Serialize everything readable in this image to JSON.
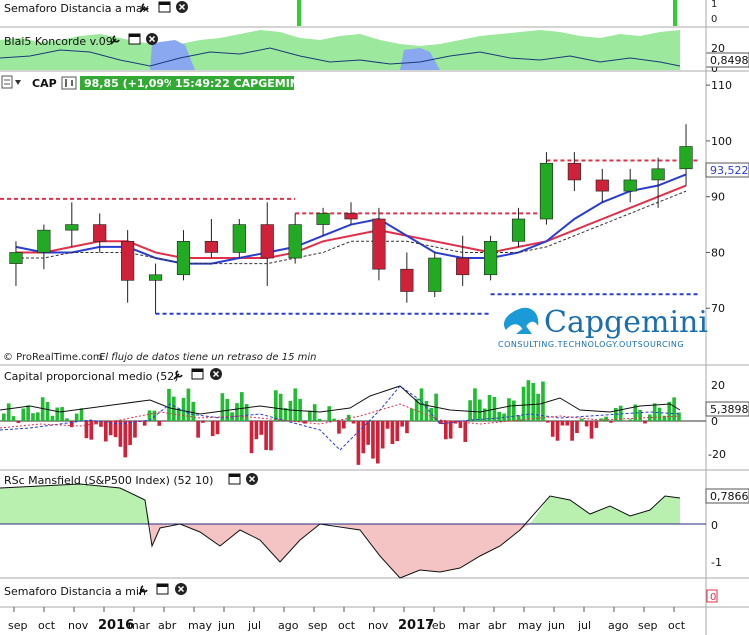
{
  "colors": {
    "bull": "#22aa22",
    "bear": "#d0213a",
    "ma_red": "#e0304a",
    "ma_blue": "#2a3dd0",
    "support_blue": "#2a3dd0",
    "resist_red": "#e0304a",
    "pos_bar": "#22bb33",
    "neg_bar": "#d0213a",
    "cap_badge_bg": "#33aa33",
    "mansfield_pos": "#b9f0b0",
    "mansfield_neg": "#f4c4c4",
    "koncorde_green": "#9ce89c",
    "koncorde_blue": "#8aa8f0"
  },
  "panels": {
    "semaforo_max": {
      "title": "Semaforo Distancia a max",
      "axis_labels": [
        "1",
        "0"
      ]
    },
    "koncorde": {
      "title": "Blai5 Koncorde v.09",
      "axis_labels": [
        "20",
        "0"
      ],
      "value_badge": "0,8498"
    },
    "price": {
      "ticker": "CAP",
      "price_badge": "98,85 (+1,09%)",
      "time_badge": "15:49:22 CAPGEMINI",
      "current_value_badge": "93,522",
      "footer_source": "© ProRealTime.com",
      "footer_note": "El flujo de datos tiene un retraso de 15 min",
      "logo_name": "Capgemini",
      "logo_tagline": "CONSULTING.TECHNOLOGY.OUTSOURCING"
    },
    "capital": {
      "title": "Capital proporcional medio (52)",
      "axis_labels": [
        "20",
        "0",
        "-20"
      ],
      "value_badge": "5,3898"
    },
    "mansfield": {
      "title": "RSc Mansfield (S&P500 Index) (52 10)",
      "axis_labels": [
        "0",
        "-1"
      ],
      "value_badge": "0,7866"
    },
    "semaforo_min": {
      "title": "Semaforo Distancia a min",
      "axis_labels": [
        "0"
      ]
    }
  },
  "time_axis": {
    "labels": [
      "sep",
      "oct",
      "nov",
      "2016",
      "mar",
      "abr",
      "may",
      "jun",
      "jul",
      "ago",
      "sep",
      "oct",
      "nov",
      "2017",
      "feb",
      "mar",
      "abr",
      "may",
      "jun",
      "jul",
      "ago",
      "sep",
      "oct"
    ],
    "bold_labels": [
      "2016",
      "2017"
    ]
  },
  "chart_data": {
    "type": "candlestick",
    "title": "CAP",
    "ylim": [
      60,
      112
    ],
    "y_ticks": [
      70,
      80,
      90,
      100,
      110
    ],
    "x_range": [
      "2015-09",
      "2017-10"
    ],
    "last_close": 98.85,
    "last_change_pct": 1.09,
    "current_value": 93.522,
    "ohlc_monthly": [
      {
        "month": "2015-09",
        "open": 78,
        "high": 82,
        "low": 74,
        "close": 80
      },
      {
        "month": "2015-10",
        "open": 80,
        "high": 85,
        "low": 77,
        "close": 84
      },
      {
        "month": "2015-11",
        "open": 84,
        "high": 89,
        "low": 81,
        "close": 85
      },
      {
        "month": "2015-12",
        "open": 85,
        "high": 87,
        "low": 80,
        "close": 82
      },
      {
        "month": "2016-01",
        "open": 82,
        "high": 84,
        "low": 71,
        "close": 75
      },
      {
        "month": "2016-02",
        "open": 75,
        "high": 78,
        "low": 69,
        "close": 76
      },
      {
        "month": "2016-03",
        "open": 76,
        "high": 84,
        "low": 75,
        "close": 82
      },
      {
        "month": "2016-04",
        "open": 82,
        "high": 86,
        "low": 79,
        "close": 80
      },
      {
        "month": "2016-05",
        "open": 80,
        "high": 86,
        "low": 79,
        "close": 85
      },
      {
        "month": "2016-06",
        "open": 85,
        "high": 89,
        "low": 74,
        "close": 79
      },
      {
        "month": "2016-07",
        "open": 79,
        "high": 87,
        "low": 78,
        "close": 85
      },
      {
        "month": "2016-08",
        "open": 85,
        "high": 88,
        "low": 83,
        "close": 87
      },
      {
        "month": "2016-09",
        "open": 87,
        "high": 89,
        "low": 85,
        "close": 86
      },
      {
        "month": "2016-10",
        "open": 86,
        "high": 88,
        "low": 75,
        "close": 77
      },
      {
        "month": "2016-11",
        "open": 77,
        "high": 80,
        "low": 71,
        "close": 73
      },
      {
        "month": "2016-12",
        "open": 73,
        "high": 80,
        "low": 72,
        "close": 79
      },
      {
        "month": "2017-01",
        "open": 79,
        "high": 83,
        "low": 74,
        "close": 76
      },
      {
        "month": "2017-02",
        "open": 76,
        "high": 83,
        "low": 75,
        "close": 82
      },
      {
        "month": "2017-03",
        "open": 82,
        "high": 88,
        "low": 81,
        "close": 86
      },
      {
        "month": "2017-04",
        "open": 86,
        "high": 98,
        "low": 85,
        "close": 96
      },
      {
        "month": "2017-05",
        "open": 96,
        "high": 98,
        "low": 91,
        "close": 93
      },
      {
        "month": "2017-06",
        "open": 93,
        "high": 95,
        "low": 89,
        "close": 91
      },
      {
        "month": "2017-07",
        "open": 91,
        "high": 95,
        "low": 89,
        "close": 93
      },
      {
        "month": "2017-08",
        "open": 93,
        "high": 97,
        "low": 88,
        "close": 95
      },
      {
        "month": "2017-09",
        "open": 95,
        "high": 103,
        "low": 92,
        "close": 99
      }
    ],
    "series": [
      {
        "values": [
          80,
          80,
          81,
          82,
          82,
          80,
          79,
          79,
          79,
          79,
          80,
          82,
          83,
          84,
          83,
          82,
          81,
          80,
          81,
          82,
          84,
          86,
          88,
          90,
          92
        ]
      },
      {
        "values": [
          81,
          80,
          80,
          81,
          81,
          79,
          78,
          78,
          79,
          80,
          81,
          83,
          85,
          86,
          83,
          80,
          79,
          79,
          80,
          82,
          86,
          89,
          91,
          92,
          94
        ]
      },
      {
        "values": [
          79,
          79,
          80,
          80,
          80,
          79,
          78,
          78,
          78,
          78,
          79,
          80,
          82,
          82,
          82,
          81,
          80,
          80,
          80,
          81,
          83,
          85,
          87,
          89,
          91
        ]
      }
    ],
    "levels": {
      "resistance_1": 89.6,
      "resistance_2": 87.0,
      "resistance_3": 96.5,
      "support_1": 69.0,
      "support_2": 72.5
    }
  }
}
